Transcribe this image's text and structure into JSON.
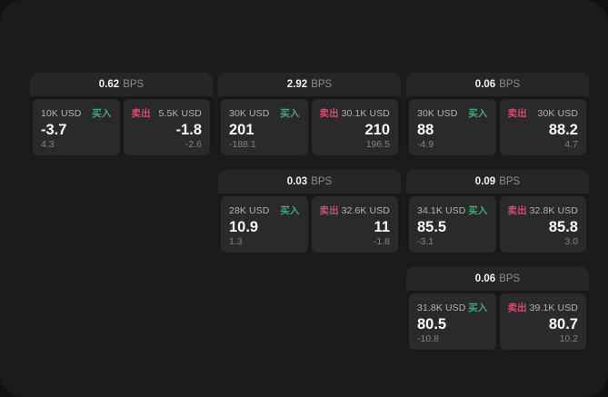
{
  "labels": {
    "bps_unit": "BPS",
    "buy": "买入",
    "sell": "卖出"
  },
  "colors": {
    "buy": "#44a874",
    "sell": "#cb4f6e",
    "window_bg": "#1b1b1d",
    "card_bg": "#262628",
    "panel_bg": "#2a2a2c"
  },
  "cards": [
    {
      "bps": "0.62",
      "buy": {
        "size": "10K USD",
        "price": "-3.7",
        "sub": "4.3"
      },
      "sell": {
        "size": "5.5K USD",
        "price": "-1.8",
        "sub": "-2.6"
      }
    },
    {
      "bps": "2.92",
      "buy": {
        "size": "30K USD",
        "price": "201",
        "sub": "-188.1"
      },
      "sell": {
        "size": "30.1K USD",
        "price": "210",
        "sub": "196.5"
      }
    },
    {
      "bps": "0.06",
      "buy": {
        "size": "30K USD",
        "price": "88",
        "sub": "-4.9"
      },
      "sell": {
        "size": "30K USD",
        "price": "88.2",
        "sub": "4.7"
      }
    },
    {
      "bps": "0.03",
      "buy": {
        "size": "28K USD",
        "price": "10.9",
        "sub": "1.3"
      },
      "sell": {
        "size": "32.6K USD",
        "price": "11",
        "sub": "-1.8"
      }
    },
    {
      "bps": "0.09",
      "buy": {
        "size": "34.1K USD",
        "price": "85.5",
        "sub": "-3.1"
      },
      "sell": {
        "size": "32.8K USD",
        "price": "85.8",
        "sub": "3.0"
      }
    },
    {
      "bps": "0.06",
      "buy": {
        "size": "31.8K USD",
        "price": "80.5",
        "sub": "-10.8"
      },
      "sell": {
        "size": "39.1K USD",
        "price": "80.7",
        "sub": "10.2"
      }
    }
  ]
}
